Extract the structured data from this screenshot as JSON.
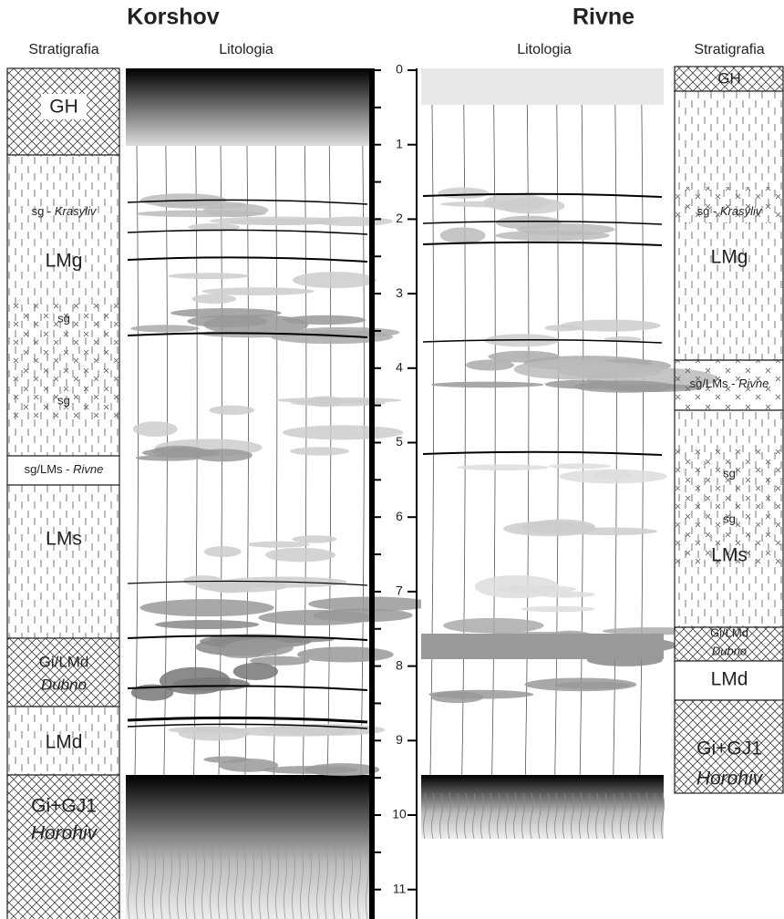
{
  "korshov": {
    "title": "Korshov",
    "stratigraphy_header": "Stratigrafia",
    "lithology_header": "Litologia",
    "units": [
      {
        "label": "GH"
      },
      {
        "label": "LMg",
        "sublabels": [
          {
            "code": "sg -",
            "place": "Krasyliv"
          },
          {
            "code": "sg"
          },
          {
            "code": "sg"
          }
        ]
      },
      {
        "code": "sg/LMs -",
        "place": "Rivne"
      },
      {
        "label": "LMs"
      },
      {
        "label": "Gi/LMd",
        "place": "Dubno"
      },
      {
        "label": "LMd"
      },
      {
        "label": "Gi+GJ1",
        "place": "Horohiv"
      }
    ]
  },
  "rivne": {
    "title": "Rivne",
    "stratigraphy_header": "Stratigrafia",
    "lithology_header": "Litologia",
    "units": [
      {
        "label": "GH"
      },
      {
        "label": "LMg",
        "sublabels": [
          {
            "code": "sg -",
            "place": "Krasyliv"
          }
        ]
      },
      {
        "code": "sg/LMs -",
        "place": "Rivne"
      },
      {
        "label": "LMs",
        "sublabels": [
          {
            "code": "sg"
          },
          {
            "code": "sg"
          }
        ]
      },
      {
        "label": "Gi/LMd",
        "place": "Dubno"
      },
      {
        "label": "LMd"
      },
      {
        "label": "Gi+GJ1",
        "place": "Horohiv"
      }
    ]
  },
  "depth_scale": {
    "ticks": [
      0,
      1,
      2,
      3,
      4,
      5,
      6,
      7,
      8,
      9,
      10,
      11
    ]
  }
}
